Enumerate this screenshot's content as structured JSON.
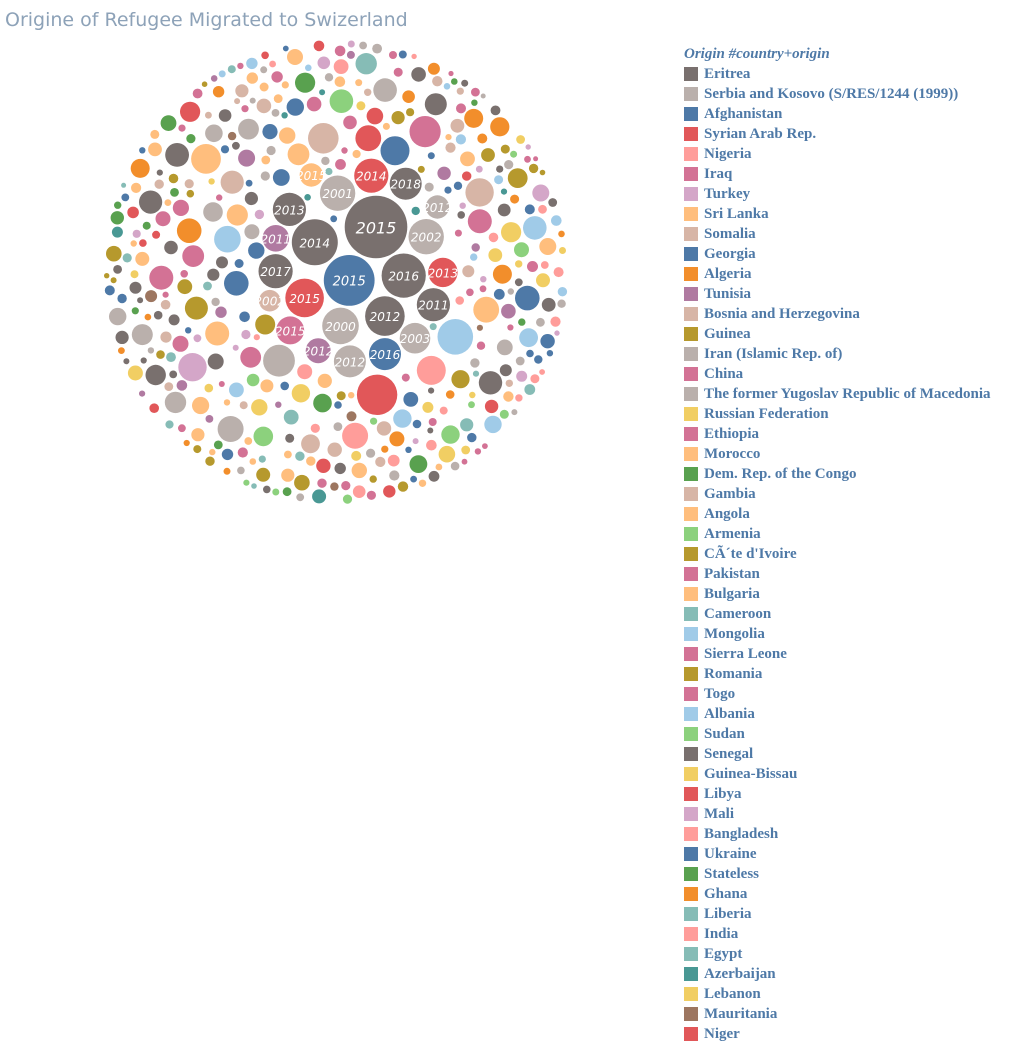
{
  "title": "Origine of Refugee Migrated to Swizerland",
  "legend": {
    "title": "Origin #country+origin",
    "items": [
      {
        "label": "Eritrea",
        "color": "#79706e"
      },
      {
        "label": "Serbia and Kosovo (S/RES/1244 (1999))",
        "color": "#bab0ac"
      },
      {
        "label": "Afghanistan",
        "color": "#4e79a7"
      },
      {
        "label": "Syrian Arab Rep.",
        "color": "#e15759"
      },
      {
        "label": "Nigeria",
        "color": "#ff9d9a"
      },
      {
        "label": "Iraq",
        "color": "#d37295"
      },
      {
        "label": "Turkey",
        "color": "#d4a6c8"
      },
      {
        "label": "Sri Lanka",
        "color": "#ffbe7d"
      },
      {
        "label": "Somalia",
        "color": "#d7b5a6"
      },
      {
        "label": "Georgia",
        "color": "#4e79a7"
      },
      {
        "label": "Algeria",
        "color": "#f28e2b"
      },
      {
        "label": "Tunisia",
        "color": "#b07aa1"
      },
      {
        "label": "Bosnia and Herzegovina",
        "color": "#d7b5a6"
      },
      {
        "label": "Guinea",
        "color": "#b6992d"
      },
      {
        "label": "Iran (Islamic Rep. of)",
        "color": "#bab0ac"
      },
      {
        "label": "China",
        "color": "#d37295"
      },
      {
        "label": "The former Yugoslav Republic of Macedonia",
        "color": "#bab0ac"
      },
      {
        "label": "Russian Federation",
        "color": "#f1ce63"
      },
      {
        "label": "Ethiopia",
        "color": "#d37295"
      },
      {
        "label": "Morocco",
        "color": "#ffbe7d"
      },
      {
        "label": "Dem. Rep. of the Congo",
        "color": "#59a14f"
      },
      {
        "label": "Gambia",
        "color": "#d7b5a6"
      },
      {
        "label": "Angola",
        "color": "#ffbe7d"
      },
      {
        "label": "Armenia",
        "color": "#8cd17d"
      },
      {
        "label": "CÃ´te d'Ivoire",
        "color": "#b6992d"
      },
      {
        "label": "Pakistan",
        "color": "#d37295"
      },
      {
        "label": "Bulgaria",
        "color": "#ffbe7d"
      },
      {
        "label": "Cameroon",
        "color": "#86bcb6"
      },
      {
        "label": "Mongolia",
        "color": "#a0cbe8"
      },
      {
        "label": "Sierra Leone",
        "color": "#d37295"
      },
      {
        "label": "Romania",
        "color": "#b6992d"
      },
      {
        "label": "Togo",
        "color": "#d37295"
      },
      {
        "label": "Albania",
        "color": "#a0cbe8"
      },
      {
        "label": "Sudan",
        "color": "#8cd17d"
      },
      {
        "label": "Senegal",
        "color": "#79706e"
      },
      {
        "label": "Guinea-Bissau",
        "color": "#f1ce63"
      },
      {
        "label": "Libya",
        "color": "#e15759"
      },
      {
        "label": "Mali",
        "color": "#d4a6c8"
      },
      {
        "label": "Bangladesh",
        "color": "#ff9d9a"
      },
      {
        "label": "Ukraine",
        "color": "#4e79a7"
      },
      {
        "label": "Stateless",
        "color": "#59a14f"
      },
      {
        "label": "Ghana",
        "color": "#f28e2b"
      },
      {
        "label": "Liberia",
        "color": "#86bcb6"
      },
      {
        "label": "India",
        "color": "#ff9d9a"
      },
      {
        "label": "Egypt",
        "color": "#86bcb6"
      },
      {
        "label": "Azerbaijan",
        "color": "#499894"
      },
      {
        "label": "Lebanon",
        "color": "#f1ce63"
      },
      {
        "label": "Mauritania",
        "color": "#9d7660"
      },
      {
        "label": "Niger",
        "color": "#e15759"
      }
    ]
  },
  "chart_data": {
    "type": "packed-bubble",
    "size_measure": "refugee count",
    "labeled_bubbles": [
      {
        "origin": "Eritrea",
        "year": "2015",
        "weight": 5.0
      },
      {
        "origin": "Syrian Arab Rep.",
        "year": "2015",
        "weight": 1.9
      },
      {
        "origin": "Afghanistan",
        "year": "2015",
        "weight": 3.3
      },
      {
        "origin": "Eritrea",
        "year": "2014",
        "weight": 2.7
      },
      {
        "origin": "Eritrea",
        "year": "2016",
        "weight": 2.5
      },
      {
        "origin": "Serbia and Kosovo (S/RES/1244 (1999))",
        "year": "2000",
        "weight": 1.7
      },
      {
        "origin": "Serbia and Kosovo (S/RES/1244 (1999))",
        "year": "2001",
        "weight": 1.6
      },
      {
        "origin": "Serbia and Kosovo (S/RES/1244 (1999))",
        "year": "2002",
        "weight": 1.6
      },
      {
        "origin": "Serbia and Kosovo (S/RES/1244 (1999))",
        "year": "2003",
        "weight": 1.2
      },
      {
        "origin": "Eritrea",
        "year": "2012",
        "weight": 2.0
      },
      {
        "origin": "Eritrea",
        "year": "2013",
        "weight": 1.4
      },
      {
        "origin": "Eritrea",
        "year": "2017",
        "weight": 1.5
      },
      {
        "origin": "Eritrea",
        "year": "2018",
        "weight": 1.3
      },
      {
        "origin": "Eritrea",
        "year": "2011",
        "weight": 1.4
      },
      {
        "origin": "Afghanistan",
        "year": "2016",
        "weight": 1.3
      },
      {
        "origin": "Syrian Arab Rep.",
        "year": "2014",
        "weight": 1.5
      },
      {
        "origin": "Syrian Arab Rep.",
        "year": "2013",
        "weight": 1.1
      },
      {
        "origin": "Iraq",
        "year": "2015",
        "weight": 1.0
      },
      {
        "origin": "Tunisia",
        "year": "2011",
        "weight": 0.9
      },
      {
        "origin": "Tunisia",
        "year": "2012",
        "weight": 0.8
      },
      {
        "origin": "Serbia and Kosovo (S/RES/1244 (1999))",
        "year": "2012",
        "weight": 1.3
      },
      {
        "origin": "Somalia",
        "year": "2002",
        "weight": 0.6
      },
      {
        "origin": "Sri Lanka",
        "year": "2015",
        "weight": 0.7
      },
      {
        "origin": "Serbia and Kosovo (S/RES/1244 (1999))",
        "year": "2012",
        "weight": 0.7
      }
    ],
    "unlabeled_bubbles": "several hundred smaller bubbles, one per origin and year, colored by origin"
  }
}
